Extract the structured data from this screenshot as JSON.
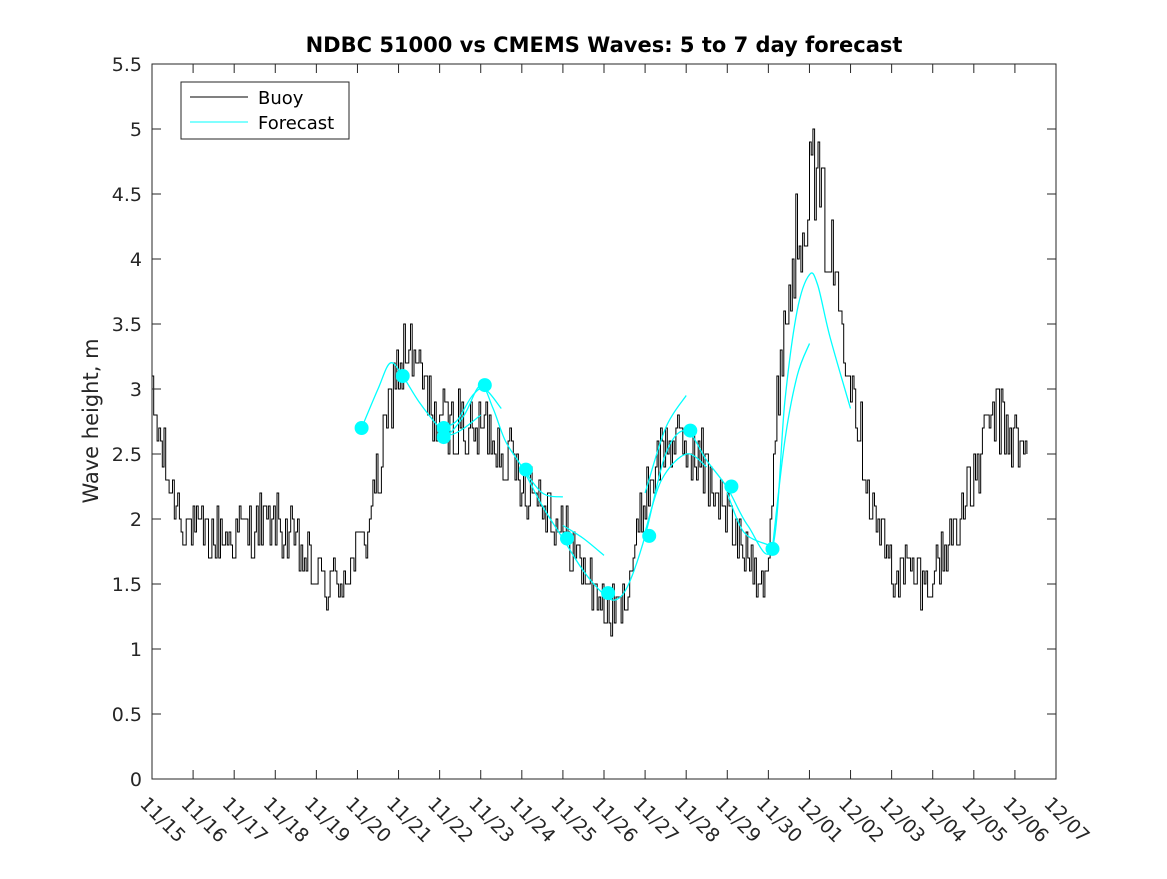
{
  "chart_data": {
    "type": "line",
    "title": "NDBC 51000 vs CMEMS Waves: 5 to 7 day forecast",
    "xlabel": "",
    "ylabel": "Wave height, m",
    "xlim": [
      0,
      22
    ],
    "ylim": [
      0,
      5.5
    ],
    "x_unit": "days since 11/15",
    "xticks": [
      0,
      1,
      2,
      3,
      4,
      5,
      6,
      7,
      8,
      9,
      10,
      11,
      12,
      13,
      14,
      15,
      16,
      17,
      18,
      19,
      20,
      21,
      22
    ],
    "xtick_labels": [
      "11/15",
      "11/16",
      "11/17",
      "11/18",
      "11/19",
      "11/20",
      "11/21",
      "11/22",
      "11/23",
      "11/24",
      "11/25",
      "11/26",
      "11/27",
      "11/28",
      "11/29",
      "11/30",
      "12/01",
      "12/02",
      "12/03",
      "12/04",
      "12/05",
      "12/06",
      "12/07"
    ],
    "yticks": [
      0,
      0.5,
      1,
      1.5,
      2,
      2.5,
      3,
      3.5,
      4,
      4.5,
      5,
      5.5
    ],
    "ytick_labels": [
      "0",
      "0.5",
      "1",
      "1.5",
      "2",
      "2.5",
      "3",
      "3.5",
      "4",
      "4.5",
      "5",
      "5.5"
    ],
    "grid": false,
    "legend_location": "top-left",
    "series": [
      {
        "name": "Buoy",
        "color": "#000000",
        "x": [
          0,
          0.25,
          0.5,
          0.75,
          1,
          1.5,
          2,
          2.5,
          3,
          3.5,
          3.9,
          4.1,
          4.4,
          4.8,
          5.2,
          5.6,
          5.9,
          6.2,
          6.5,
          6.8,
          7.1,
          7.4,
          7.7,
          8,
          8.3,
          8.6,
          9,
          9.4,
          9.8,
          10.2,
          10.6,
          11,
          11.1,
          11.4,
          11.7,
          12,
          12.3,
          12.6,
          12.9,
          13.2,
          13.6,
          14,
          14.4,
          14.8,
          15,
          15.3,
          15.6,
          15.9,
          16.1,
          16.4,
          16.7,
          17,
          17.3,
          17.6,
          18,
          18.4,
          18.8,
          19.2,
          19.6,
          20,
          20.4,
          20.8,
          21,
          21.3
        ],
        "y": [
          2.85,
          2.5,
          2.2,
          2.0,
          1.9,
          1.85,
          1.9,
          1.95,
          1.95,
          1.8,
          1.6,
          1.5,
          1.5,
          1.6,
          1.9,
          2.5,
          3.1,
          3.3,
          3.1,
          2.85,
          2.7,
          2.75,
          2.65,
          2.7,
          2.65,
          2.5,
          2.3,
          2.2,
          2.0,
          1.8,
          1.55,
          1.3,
          1.25,
          1.3,
          1.7,
          2.2,
          2.45,
          2.6,
          2.55,
          2.5,
          2.3,
          2.0,
          1.75,
          1.6,
          1.7,
          3.3,
          4.0,
          4.5,
          4.7,
          4.2,
          3.7,
          3.2,
          2.5,
          2.0,
          1.6,
          1.6,
          1.5,
          1.7,
          2.0,
          2.3,
          2.8,
          2.7,
          2.6,
          2.45
        ]
      },
      {
        "name": "Forecast",
        "color": "#00ffff",
        "x": [
          5.1,
          5.5,
          5.8,
          6.1,
          6.5,
          7.0,
          7.2,
          7.6,
          8.0,
          8.3,
          8.6,
          9.0,
          9.5,
          10.0,
          10.5,
          11.0,
          11.3,
          11.6,
          12.0,
          12.5,
          13.0,
          13.5,
          14.0,
          14.5,
          15.1,
          15.4,
          15.7,
          16.0,
          16.2,
          16.5,
          17.0
        ],
        "y": [
          2.7,
          3.0,
          3.2,
          3.1,
          2.9,
          2.7,
          2.65,
          2.8,
          3.03,
          2.85,
          2.6,
          2.4,
          2.1,
          1.85,
          1.6,
          1.42,
          1.38,
          1.5,
          1.87,
          2.5,
          2.68,
          2.45,
          2.24,
          1.95,
          1.78,
          2.9,
          3.6,
          3.88,
          3.8,
          3.4,
          2.85
        ]
      }
    ],
    "extra_forecast_runs": [
      {
        "x": [
          7.0,
          7.3,
          7.6,
          8.0
        ],
        "y": [
          2.65,
          2.65,
          2.7,
          2.8
        ]
      },
      {
        "x": [
          7.0,
          7.4,
          7.8,
          8.1,
          8.5
        ],
        "y": [
          2.7,
          2.75,
          2.95,
          3.0,
          2.85
        ]
      },
      {
        "x": [
          9.0,
          9.5,
          10.0
        ],
        "y": [
          2.4,
          2.2,
          2.17
        ]
      },
      {
        "x": [
          10.0,
          10.5,
          11.0
        ],
        "y": [
          1.95,
          1.85,
          1.72
        ]
      },
      {
        "x": [
          12.0,
          12.5,
          13.0
        ],
        "y": [
          2.2,
          2.7,
          2.95
        ]
      },
      {
        "x": [
          12.0,
          12.4,
          13.0,
          13.5
        ],
        "y": [
          1.9,
          2.3,
          2.5,
          2.4
        ]
      },
      {
        "x": [
          14.0,
          14.4,
          15.0
        ],
        "y": [
          2.2,
          1.9,
          1.8
        ]
      },
      {
        "x": [
          15.1,
          15.4,
          15.7,
          16.0
        ],
        "y": [
          1.78,
          2.6,
          3.1,
          3.35
        ]
      }
    ],
    "forecast_markers": [
      {
        "x": 5.1,
        "y": 2.7
      },
      {
        "x": 6.1,
        "y": 3.1
      },
      {
        "x": 7.1,
        "y": 2.7
      },
      {
        "x": 7.1,
        "y": 2.63
      },
      {
        "x": 8.1,
        "y": 3.03
      },
      {
        "x": 9.1,
        "y": 2.38
      },
      {
        "x": 10.1,
        "y": 1.85
      },
      {
        "x": 11.1,
        "y": 1.43
      },
      {
        "x": 12.1,
        "y": 1.87
      },
      {
        "x": 13.1,
        "y": 2.68
      },
      {
        "x": 14.1,
        "y": 2.25
      },
      {
        "x": 15.1,
        "y": 1.77
      }
    ]
  }
}
